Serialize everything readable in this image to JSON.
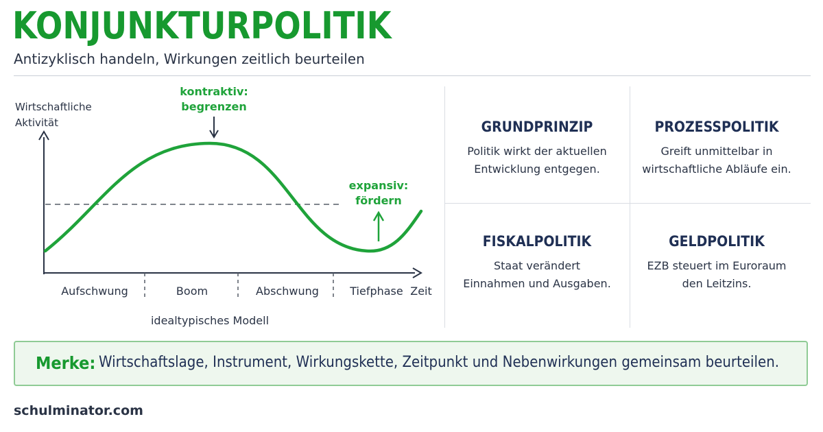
{
  "header": {
    "title": "KONJUNKTURPOLITIK",
    "subtitle": "Antizyklisch handeln, Wirkungen zeitlich beurteilen"
  },
  "diagram": {
    "y_axis_label_line1": "Wirtschaftliche",
    "y_axis_label_line2": "Aktivität",
    "x_axis_label": "Zeit",
    "phases": [
      "Aufschwung",
      "Boom",
      "Abschwung",
      "Tiefphase"
    ],
    "model_caption": "idealtypisches Modell",
    "peak_annotation_line1": "kontraktiv:",
    "peak_annotation_line2": "begrenzen",
    "trough_annotation_line1": "expansiv:",
    "trough_annotation_line2": "fördern"
  },
  "cards": [
    {
      "title": "GRUNDPRINZIP",
      "text_line1": "Politik wirkt der aktuellen",
      "text_line2": "Entwicklung entgegen."
    },
    {
      "title": "PROZESSPOLITIK",
      "text_line1": "Greift unmittelbar in",
      "text_line2": "wirtschaftliche Abläufe ein."
    },
    {
      "title": "FISKALPOLITIK",
      "text_line1": "Staat verändert",
      "text_line2": "Einnahmen und Ausgaben."
    },
    {
      "title": "GELDPOLITIK",
      "text_line1": "EZB steuert im Euroraum",
      "text_line2": "den Leitzins."
    }
  ],
  "merke": {
    "label": "Merke:",
    "text": "Wirtschaftslage, Instrument, Wirkungskette, Zeitpunkt und Nebenwirkungen gemeinsam beurteilen."
  },
  "footer": {
    "site": "schulminator.com"
  },
  "colors": {
    "accent_green": "#17992f",
    "navy": "#1f2f54",
    "text": "#2a3345"
  }
}
